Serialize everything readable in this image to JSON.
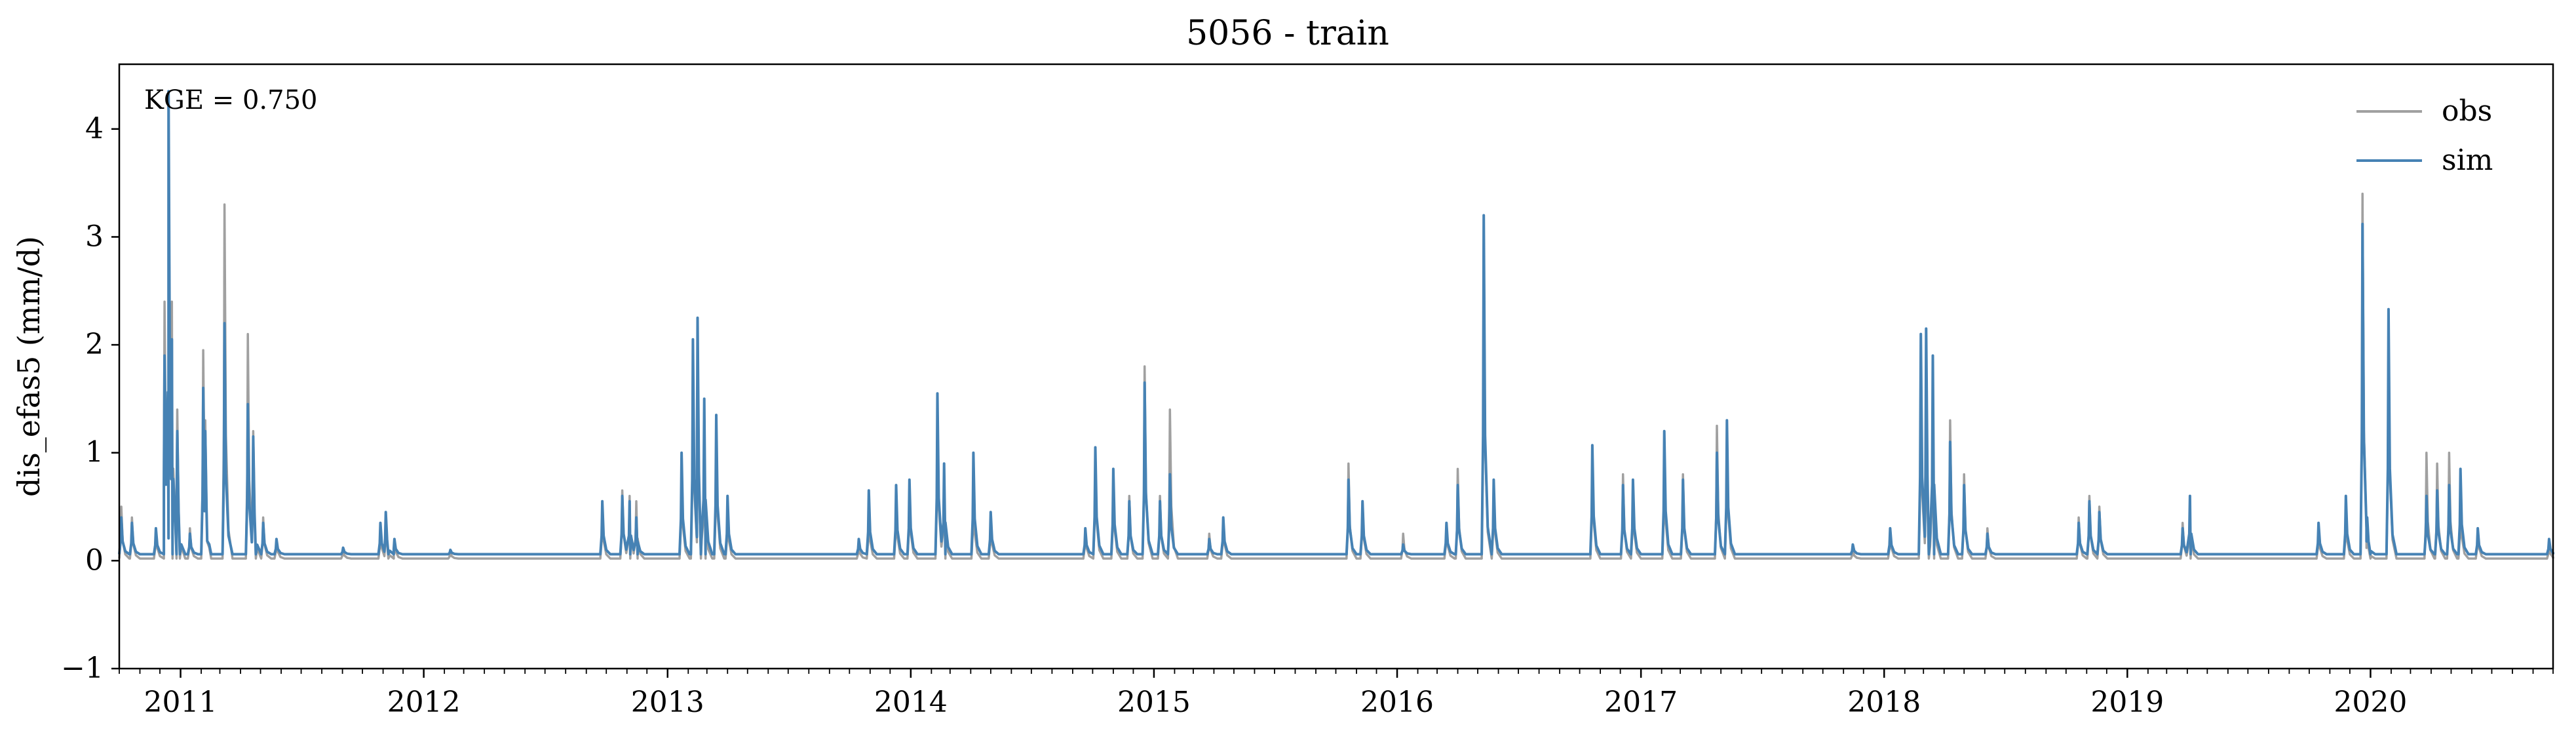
{
  "chart_data": {
    "type": "line",
    "title": "5056 - train",
    "ylabel": "dis_efas5 (mm/d)",
    "xlabel": "",
    "annotation": "KGE = 0.750",
    "xlim": [
      "2010-10-01",
      "2020-10-01"
    ],
    "ylim": [
      -1,
      4.6
    ],
    "yticks": [
      -1,
      0,
      1,
      2,
      3,
      4
    ],
    "xticks": [
      "2011",
      "2012",
      "2013",
      "2014",
      "2015",
      "2016",
      "2017",
      "2018",
      "2019",
      "2020"
    ],
    "legend_position": "top-right",
    "grid": false,
    "baseflow": {
      "obs": 0.02,
      "sim": 0.06
    },
    "series": [
      {
        "name": "obs",
        "color": "#a0a0a0",
        "points": [
          [
            "2010-10-04",
            0.5
          ],
          [
            "2010-10-20",
            0.4
          ],
          [
            "2010-11-25",
            0.3
          ],
          [
            "2010-12-08",
            2.4
          ],
          [
            "2010-12-14",
            4.1
          ],
          [
            "2010-12-19",
            2.4
          ],
          [
            "2010-12-27",
            1.4
          ],
          [
            "2011-01-15",
            0.3
          ],
          [
            "2011-02-04",
            1.95
          ],
          [
            "2011-02-07",
            1.3
          ],
          [
            "2011-03-08",
            3.3
          ],
          [
            "2011-04-12",
            2.1
          ],
          [
            "2011-04-20",
            1.2
          ],
          [
            "2011-05-05",
            0.4
          ],
          [
            "2011-05-25",
            0.2
          ],
          [
            "2011-09-02",
            0.1
          ],
          [
            "2011-10-28",
            0.3
          ],
          [
            "2011-11-05",
            0.4
          ],
          [
            "2011-11-18",
            0.2
          ],
          [
            "2012-02-10",
            0.08
          ],
          [
            "2012-09-25",
            0.5
          ],
          [
            "2012-10-25",
            0.65
          ],
          [
            "2012-11-05",
            0.6
          ],
          [
            "2012-11-15",
            0.55
          ],
          [
            "2013-01-22",
            0.9
          ],
          [
            "2013-02-08",
            1.9
          ],
          [
            "2013-02-15",
            2.0
          ],
          [
            "2013-02-25",
            1.1
          ],
          [
            "2013-03-15",
            1.2
          ],
          [
            "2013-04-01",
            0.5
          ],
          [
            "2013-10-15",
            0.15
          ],
          [
            "2013-10-30",
            0.5
          ],
          [
            "2013-12-10",
            0.6
          ],
          [
            "2013-12-30",
            0.7
          ],
          [
            "2014-02-10",
            1.4
          ],
          [
            "2014-02-20",
            0.8
          ],
          [
            "2014-04-05",
            0.7
          ],
          [
            "2014-05-01",
            0.4
          ],
          [
            "2014-09-20",
            0.3
          ],
          [
            "2014-10-05",
            1.0
          ],
          [
            "2014-11-01",
            0.8
          ],
          [
            "2014-11-25",
            0.6
          ],
          [
            "2014-12-18",
            1.8
          ],
          [
            "2015-01-10",
            0.6
          ],
          [
            "2015-01-25",
            1.4
          ],
          [
            "2015-03-25",
            0.25
          ],
          [
            "2015-04-15",
            0.4
          ],
          [
            "2015-10-20",
            0.9
          ],
          [
            "2015-11-10",
            0.55
          ],
          [
            "2016-01-10",
            0.25
          ],
          [
            "2016-03-15",
            0.35
          ],
          [
            "2016-04-01",
            0.85
          ],
          [
            "2016-05-10",
            3.1
          ],
          [
            "2016-05-25",
            0.7
          ],
          [
            "2016-10-20",
            1.0
          ],
          [
            "2016-12-05",
            0.8
          ],
          [
            "2016-12-20",
            0.7
          ],
          [
            "2017-02-05",
            1.0
          ],
          [
            "2017-03-05",
            0.8
          ],
          [
            "2017-04-25",
            1.25
          ],
          [
            "2017-05-10",
            1.2
          ],
          [
            "2017-11-15",
            0.1
          ],
          [
            "2018-01-10",
            0.3
          ],
          [
            "2018-02-25",
            1.8
          ],
          [
            "2018-03-05",
            1.5
          ],
          [
            "2018-03-15",
            1.6
          ],
          [
            "2018-04-10",
            1.3
          ],
          [
            "2018-05-01",
            0.8
          ],
          [
            "2018-06-05",
            0.3
          ],
          [
            "2018-10-20",
            0.4
          ],
          [
            "2018-11-05",
            0.6
          ],
          [
            "2018-11-20",
            0.5
          ],
          [
            "2019-03-25",
            0.35
          ],
          [
            "2019-04-05",
            0.5
          ],
          [
            "2019-10-15",
            0.3
          ],
          [
            "2019-11-25",
            0.5
          ],
          [
            "2019-12-20",
            3.4
          ],
          [
            "2019-12-27",
            0.3
          ],
          [
            "2020-01-28",
            2.2
          ],
          [
            "2020-03-25",
            1.0
          ],
          [
            "2020-04-10",
            0.9
          ],
          [
            "2020-04-28",
            1.0
          ],
          [
            "2020-05-15",
            0.6
          ],
          [
            "2020-06-10",
            0.3
          ],
          [
            "2020-09-25",
            0.15
          ]
        ]
      },
      {
        "name": "sim",
        "color": "#4682b4",
        "points": [
          [
            "2010-10-04",
            0.4
          ],
          [
            "2010-10-20",
            0.35
          ],
          [
            "2010-11-25",
            0.3
          ],
          [
            "2010-12-08",
            1.9
          ],
          [
            "2010-12-14",
            4.35
          ],
          [
            "2010-12-19",
            2.05
          ],
          [
            "2010-12-27",
            1.2
          ],
          [
            "2011-01-15",
            0.25
          ],
          [
            "2011-02-04",
            1.6
          ],
          [
            "2011-02-07",
            1.2
          ],
          [
            "2011-03-08",
            2.2
          ],
          [
            "2011-04-12",
            1.45
          ],
          [
            "2011-04-20",
            1.15
          ],
          [
            "2011-05-05",
            0.35
          ],
          [
            "2011-05-25",
            0.2
          ],
          [
            "2011-09-02",
            0.12
          ],
          [
            "2011-10-28",
            0.35
          ],
          [
            "2011-11-05",
            0.45
          ],
          [
            "2011-11-18",
            0.2
          ],
          [
            "2012-02-10",
            0.1
          ],
          [
            "2012-09-25",
            0.55
          ],
          [
            "2012-10-25",
            0.6
          ],
          [
            "2012-11-05",
            0.55
          ],
          [
            "2012-11-15",
            0.4
          ],
          [
            "2013-01-22",
            1.0
          ],
          [
            "2013-02-08",
            2.05
          ],
          [
            "2013-02-15",
            2.25
          ],
          [
            "2013-02-25",
            1.5
          ],
          [
            "2013-03-15",
            1.35
          ],
          [
            "2013-04-01",
            0.6
          ],
          [
            "2013-10-15",
            0.2
          ],
          [
            "2013-10-30",
            0.65
          ],
          [
            "2013-12-10",
            0.7
          ],
          [
            "2013-12-30",
            0.75
          ],
          [
            "2014-02-10",
            1.55
          ],
          [
            "2014-02-20",
            0.9
          ],
          [
            "2014-04-05",
            1.0
          ],
          [
            "2014-05-01",
            0.45
          ],
          [
            "2014-09-20",
            0.3
          ],
          [
            "2014-10-05",
            1.05
          ],
          [
            "2014-11-01",
            0.85
          ],
          [
            "2014-11-25",
            0.55
          ],
          [
            "2014-12-18",
            1.65
          ],
          [
            "2015-01-10",
            0.55
          ],
          [
            "2015-01-25",
            0.8
          ],
          [
            "2015-03-25",
            0.2
          ],
          [
            "2015-04-15",
            0.4
          ],
          [
            "2015-10-20",
            0.75
          ],
          [
            "2015-11-10",
            0.55
          ],
          [
            "2016-01-10",
            0.15
          ],
          [
            "2016-03-15",
            0.35
          ],
          [
            "2016-04-01",
            0.7
          ],
          [
            "2016-05-10",
            3.2
          ],
          [
            "2016-05-25",
            0.75
          ],
          [
            "2016-10-20",
            1.07
          ],
          [
            "2016-12-05",
            0.7
          ],
          [
            "2016-12-20",
            0.75
          ],
          [
            "2017-02-05",
            1.2
          ],
          [
            "2017-03-05",
            0.75
          ],
          [
            "2017-04-25",
            1.0
          ],
          [
            "2017-05-10",
            1.3
          ],
          [
            "2017-11-15",
            0.15
          ],
          [
            "2018-01-10",
            0.3
          ],
          [
            "2018-02-25",
            2.1
          ],
          [
            "2018-03-05",
            2.15
          ],
          [
            "2018-03-15",
            1.9
          ],
          [
            "2018-04-10",
            1.1
          ],
          [
            "2018-05-01",
            0.7
          ],
          [
            "2018-06-05",
            0.25
          ],
          [
            "2018-10-20",
            0.35
          ],
          [
            "2018-11-05",
            0.55
          ],
          [
            "2018-11-20",
            0.45
          ],
          [
            "2019-03-25",
            0.3
          ],
          [
            "2019-04-05",
            0.6
          ],
          [
            "2019-10-15",
            0.35
          ],
          [
            "2019-11-25",
            0.6
          ],
          [
            "2019-12-20",
            3.12
          ],
          [
            "2019-12-27",
            0.4
          ],
          [
            "2020-01-28",
            2.33
          ],
          [
            "2020-03-25",
            0.6
          ],
          [
            "2020-04-10",
            0.65
          ],
          [
            "2020-04-28",
            0.7
          ],
          [
            "2020-05-15",
            0.85
          ],
          [
            "2020-06-10",
            0.3
          ],
          [
            "2020-09-25",
            0.2
          ]
        ]
      }
    ]
  }
}
